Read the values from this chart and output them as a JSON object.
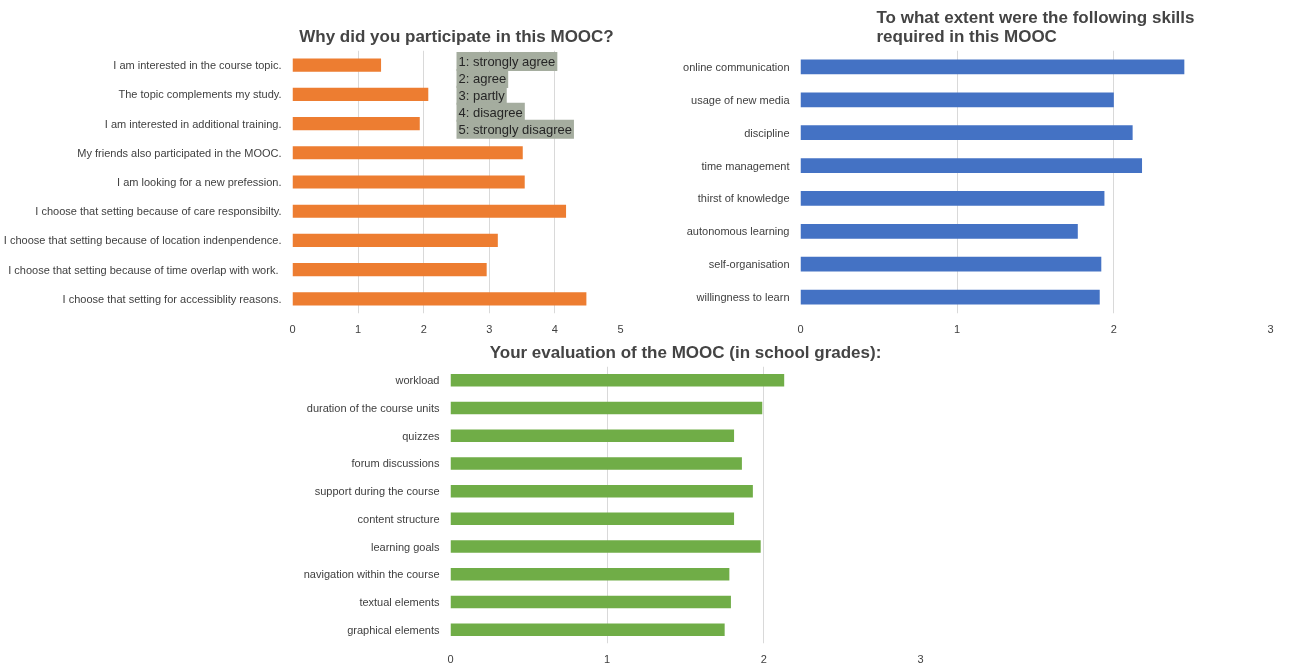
{
  "chart_data": [
    {
      "type": "bar",
      "orientation": "horizontal",
      "title": "Why did you participate in this MOOC?",
      "categories": [
        "I am interested in the course topic.",
        "The topic complements my study.",
        "I am interested in additional training.",
        "My friends also participated in the MOOC.",
        "I am looking for a new prefession.",
        "I choose that setting because of care responsibilty.",
        "I choose that setting because of location indenpendence.",
        "I choose that setting  because of time overlap with work.",
        "I choose that setting for accessiblity reasons."
      ],
      "values": [
        1.35,
        2.07,
        1.94,
        3.51,
        3.54,
        4.17,
        3.13,
        2.96,
        4.48
      ],
      "color": "#ed7d31",
      "xlim": [
        0,
        5
      ],
      "xticks": [
        0,
        1,
        2,
        3,
        4,
        5
      ],
      "grid": "x",
      "annotations": [
        "1: strongly agree",
        "2: agree",
        "3: partly",
        "4: disagree",
        "5: strongly disagree"
      ]
    },
    {
      "type": "bar",
      "orientation": "horizontal",
      "title": "To what extent were the following skills required in this MOOC",
      "categories": [
        "online communication",
        "usage of new media",
        "discipline",
        "time management",
        "thirst of knowledge",
        "autonomous learning",
        "self-organisation",
        "willingness to learn"
      ],
      "values": [
        2.45,
        2.0,
        2.12,
        2.18,
        1.94,
        1.77,
        1.92,
        1.91
      ],
      "color": "#4472c4",
      "xlim": [
        0,
        3
      ],
      "xticks": [
        0,
        1,
        2,
        3
      ],
      "grid": "x"
    },
    {
      "type": "bar",
      "orientation": "horizontal",
      "title": "Your evaluation of the MOOC (in school grades):",
      "categories": [
        "workload",
        "duration of the course units",
        "quizzes",
        "forum discussions",
        "support during the course",
        "content structure",
        "learning goals",
        "navigation within the course",
        "textual elements",
        "graphical elements"
      ],
      "values": [
        2.13,
        1.99,
        1.81,
        1.86,
        1.93,
        1.81,
        1.98,
        1.78,
        1.79,
        1.75
      ],
      "color": "#70ad47",
      "xlim": [
        0,
        3
      ],
      "xticks": [
        0,
        1,
        2,
        3
      ],
      "grid": "x"
    }
  ]
}
